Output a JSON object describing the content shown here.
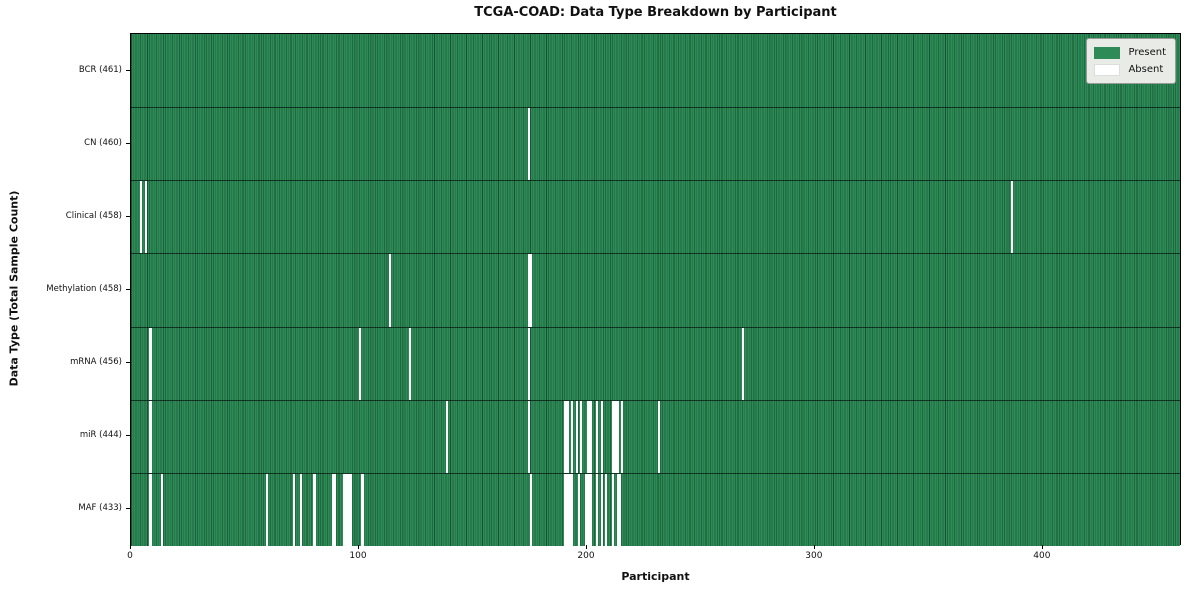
{
  "figure": {
    "title": "TCGA-COAD: Data Type Breakdown by Participant",
    "xlabel": "Participant",
    "ylabel": "Data Type (Total Sample Count)"
  },
  "legend": {
    "present_label": "Present",
    "absent_label": "Absent"
  },
  "colors": {
    "present": "#2e8b57",
    "present_edge": "#1e6a40",
    "absent": "#ffffff",
    "legend_bg": "#e9ece6",
    "legend_border": "#999999"
  },
  "chart_data": {
    "type": "heatmap",
    "title": "TCGA-COAD: Data Type Breakdown by Participant",
    "xlabel": "Participant",
    "ylabel": "Data Type (Total Sample Count)",
    "x_ticks": [
      0,
      100,
      200,
      300,
      400
    ],
    "x_range": [
      0,
      461
    ],
    "n_participants": 461,
    "legend_entries": [
      "Present",
      "Absent"
    ],
    "legend_position": "upper right",
    "rows": [
      {
        "label": "BCR (461)",
        "data_type": "BCR",
        "present_count": 461,
        "absent_participants": []
      },
      {
        "label": "CN (460)",
        "data_type": "CN",
        "present_count": 460,
        "absent_participants": [
          174
        ]
      },
      {
        "label": "Clinical (458)",
        "data_type": "Clinical",
        "present_count": 458,
        "absent_participants": [
          4,
          6,
          386
        ]
      },
      {
        "label": "Methylation (458)",
        "data_type": "Methylation",
        "present_count": 458,
        "absent_participants": [
          113,
          174,
          175
        ]
      },
      {
        "label": "mRNA (456)",
        "data_type": "mRNA",
        "present_count": 456,
        "absent_participants": [
          8,
          100,
          122,
          174,
          268
        ]
      },
      {
        "label": "miR (444)",
        "data_type": "miR",
        "present_count": 444,
        "absent_participants": [
          8,
          138,
          174,
          190,
          191,
          193,
          195,
          197,
          200,
          201,
          204,
          206,
          211,
          212,
          213,
          215,
          231
        ]
      },
      {
        "label": "MAF (433)",
        "data_type": "MAF",
        "present_count": 433,
        "absent_participants": [
          8,
          13,
          59,
          71,
          74,
          80,
          88,
          89,
          93,
          94,
          95,
          96,
          101,
          175,
          190,
          191,
          192,
          193,
          196,
          199,
          200,
          201,
          204,
          206,
          208,
          211,
          213,
          214
        ]
      }
    ]
  }
}
